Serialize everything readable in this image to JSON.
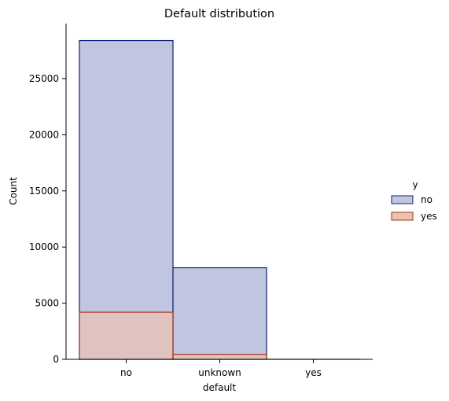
{
  "chart_data": {
    "type": "bar",
    "title": "Default distribution",
    "xlabel": "default",
    "ylabel": "Count",
    "categories": [
      "no",
      "unknown",
      "yes"
    ],
    "ylim": [
      0,
      29900
    ],
    "yticks": [
      0,
      5000,
      10000,
      15000,
      20000,
      25000
    ],
    "grid": false,
    "stacked": false,
    "legend": {
      "title": "y",
      "placement": "right"
    },
    "series": [
      {
        "name": "no",
        "values": [
          28391,
          8154,
          3
        ],
        "fill": "#c1c6e0",
        "stroke": "#0f1f7a"
      },
      {
        "name": "yes",
        "values": [
          4197,
          443,
          0
        ],
        "fill": "#e9c2b4",
        "stroke": "#a8330f"
      }
    ]
  }
}
